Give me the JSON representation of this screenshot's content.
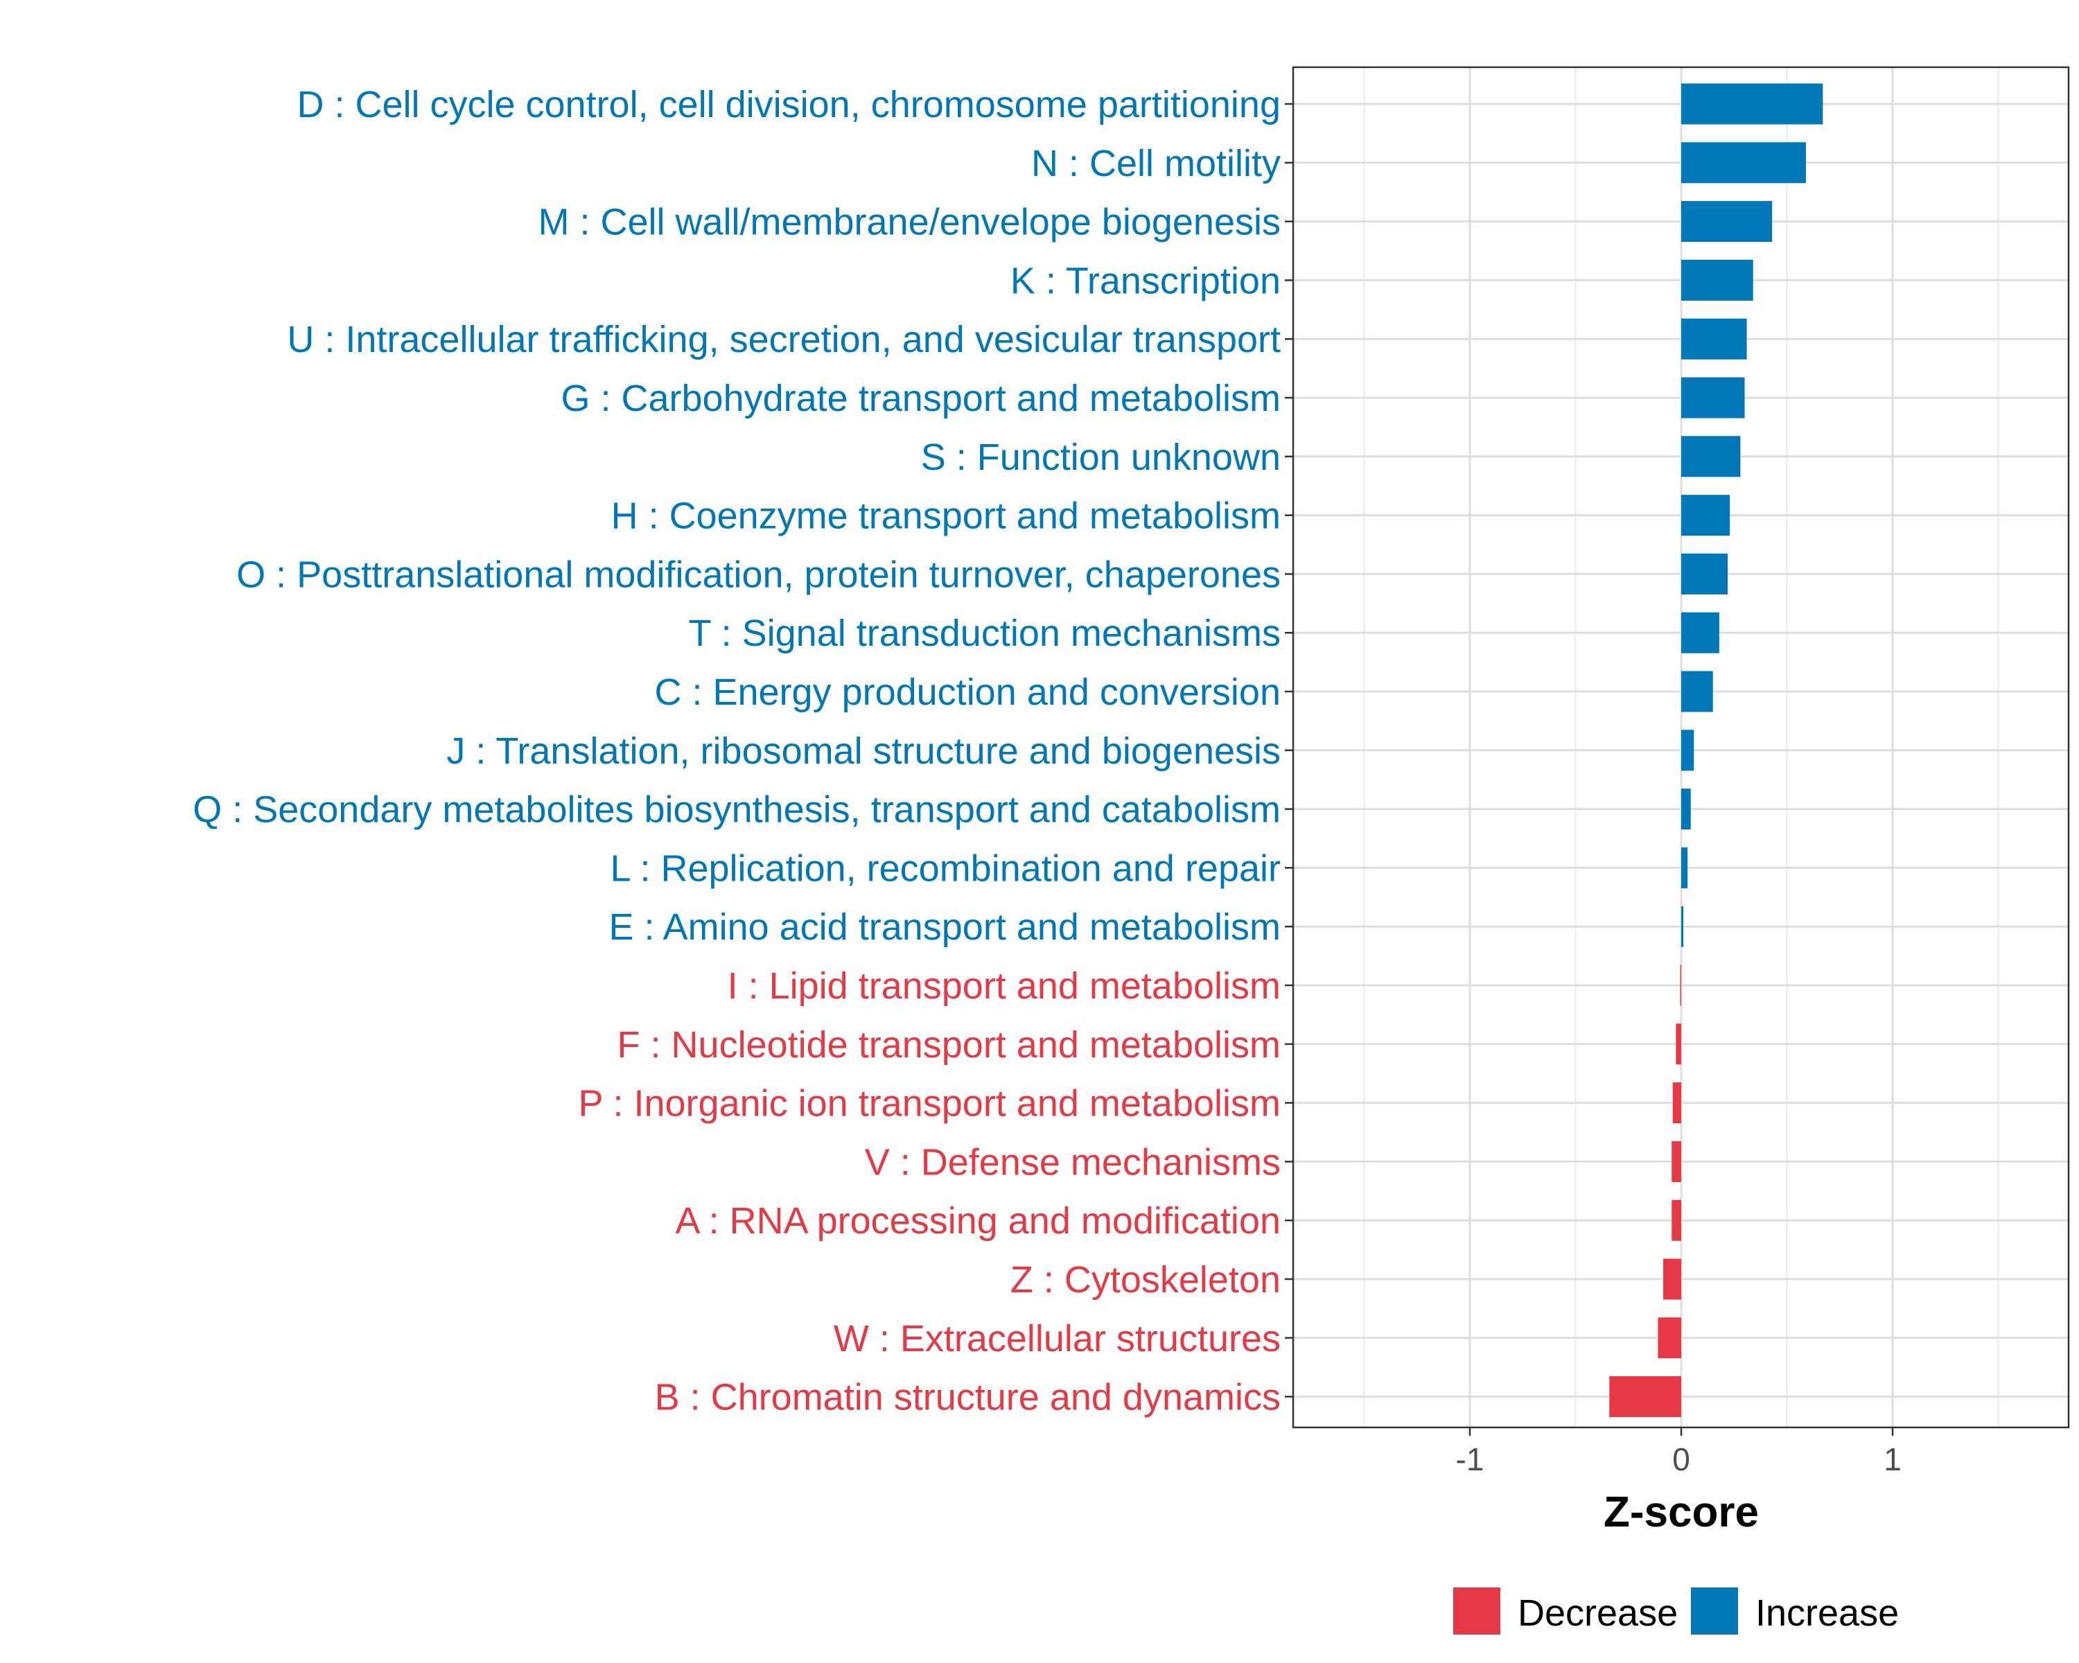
{
  "chart_data": {
    "type": "bar",
    "orientation": "horizontal",
    "xlabel": "Z-score",
    "xlim": [
      -1.83,
      1.83
    ],
    "xticks": [
      {
        "value": -1,
        "label": "-1"
      },
      {
        "value": 0,
        "label": "0"
      },
      {
        "value": 1,
        "label": "1"
      }
    ],
    "grid": true,
    "legend": {
      "position": "bottom",
      "entries": [
        {
          "name": "Decrease",
          "color": "#E63946"
        },
        {
          "name": "Increase",
          "color": "#0077B6"
        }
      ]
    },
    "bars": [
      {
        "label": "D : Cell cycle control, cell division, chromosome partitioning",
        "value": 0.67,
        "group": "Increase"
      },
      {
        "label": "N : Cell motility",
        "value": 0.59,
        "group": "Increase"
      },
      {
        "label": "M : Cell wall/membrane/envelope biogenesis",
        "value": 0.43,
        "group": "Increase"
      },
      {
        "label": "K : Transcription",
        "value": 0.34,
        "group": "Increase"
      },
      {
        "label": "U : Intracellular trafficking, secretion, and vesicular transport",
        "value": 0.31,
        "group": "Increase"
      },
      {
        "label": "G : Carbohydrate transport and metabolism",
        "value": 0.3,
        "group": "Increase"
      },
      {
        "label": "S : Function unknown",
        "value": 0.28,
        "group": "Increase"
      },
      {
        "label": "H : Coenzyme transport and metabolism",
        "value": 0.23,
        "group": "Increase"
      },
      {
        "label": "O : Posttranslational modification, protein turnover, chaperones",
        "value": 0.22,
        "group": "Increase"
      },
      {
        "label": "T : Signal transduction mechanisms",
        "value": 0.18,
        "group": "Increase"
      },
      {
        "label": "C : Energy production and conversion",
        "value": 0.15,
        "group": "Increase"
      },
      {
        "label": "J : Translation, ribosomal structure and biogenesis",
        "value": 0.06,
        "group": "Increase"
      },
      {
        "label": "Q : Secondary metabolites biosynthesis, transport and catabolism",
        "value": 0.045,
        "group": "Increase"
      },
      {
        "label": "L : Replication, recombination and repair",
        "value": 0.03,
        "group": "Increase"
      },
      {
        "label": "E : Amino acid transport and metabolism",
        "value": 0.01,
        "group": "Increase"
      },
      {
        "label": "I : Lipid transport and metabolism",
        "value": -0.005,
        "group": "Decrease"
      },
      {
        "label": "F : Nucleotide transport and metabolism",
        "value": -0.025,
        "group": "Decrease"
      },
      {
        "label": "P : Inorganic ion transport and metabolism",
        "value": -0.04,
        "group": "Decrease"
      },
      {
        "label": "V : Defense mechanisms",
        "value": -0.045,
        "group": "Decrease"
      },
      {
        "label": "A : RNA processing and modification",
        "value": -0.045,
        "group": "Decrease"
      },
      {
        "label": "Z : Cytoskeleton",
        "value": -0.085,
        "group": "Decrease"
      },
      {
        "label": "W : Extracellular structures",
        "value": -0.11,
        "group": "Decrease"
      },
      {
        "label": "B : Chromatin structure and dynamics",
        "value": -0.34,
        "group": "Decrease"
      }
    ]
  }
}
